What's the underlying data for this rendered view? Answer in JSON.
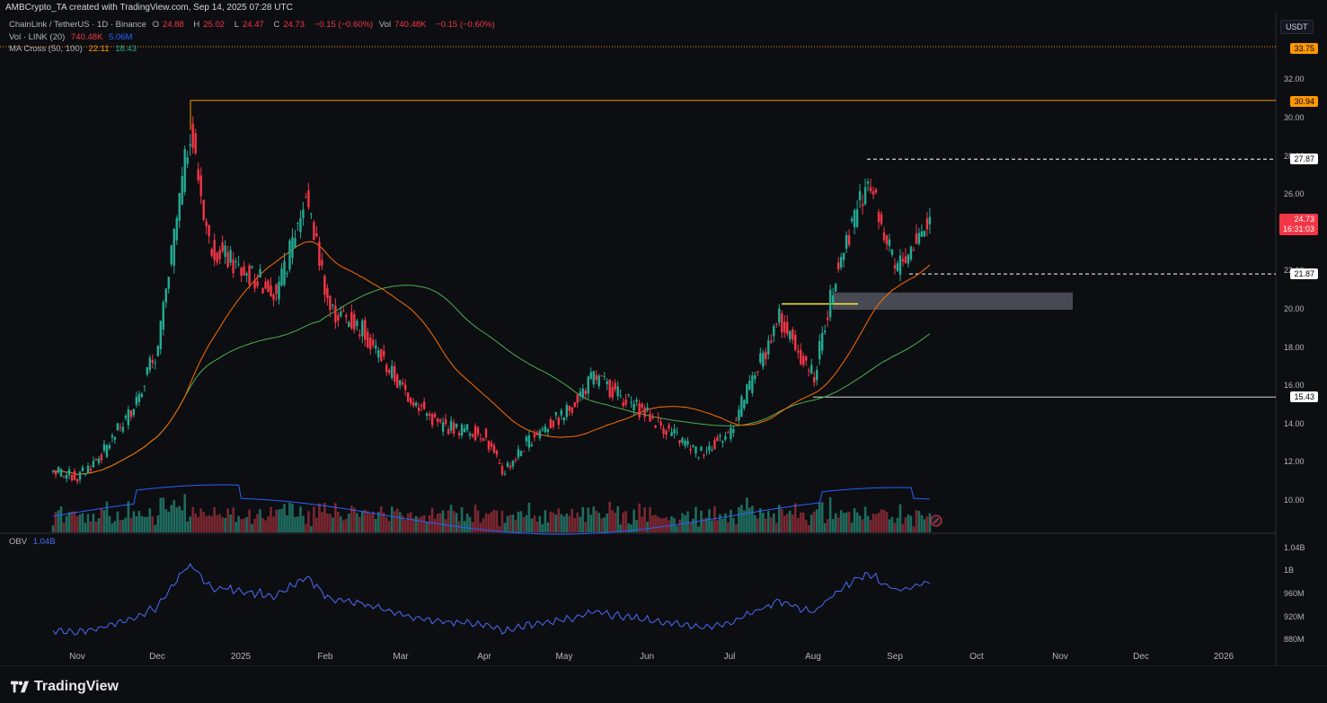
{
  "header": {
    "title": "AMBCrypto_TA created with TradingView.com, Sep 14, 2025 07:28 UTC"
  },
  "legend": {
    "symbol": "ChainLink / TetherUS · 1D · Binance",
    "o_label": "O",
    "o_value": "24.88",
    "h_label": "H",
    "h_value": "25.02",
    "l_label": "L",
    "l_value": "24.47",
    "c_label": "C",
    "c_value": "24.73",
    "change": "−0.15 (−0.60%)",
    "vol_label": "Vol",
    "vol_value": "740.48K",
    "vol_change": "−0.15 (−0.60%)",
    "vol_line": "Vol · LINK (20)",
    "vol_a": "740.48K",
    "vol_b": "5.06M",
    "ma_line": "MA Cross (50, 100)",
    "ma_a": "22.11",
    "ma_b": "18.43",
    "obv_label": "OBV",
    "obv_value": "1.04B"
  },
  "currency_button": "USDT",
  "price_axis": [
    "32.00",
    "30.00",
    "28.00",
    "26.00",
    "24.00",
    "22.00",
    "20.00",
    "18.00",
    "16.00",
    "14.00",
    "12.00",
    "10.00"
  ],
  "obv_axis": [
    "1.04B",
    "1B",
    "960M",
    "920M",
    "880M"
  ],
  "price_tags": {
    "top": "33.75",
    "resistance_high": "30.94",
    "resistance_mid": "27.87",
    "current_price": "24.73",
    "countdown": "16:31:03",
    "support": "21.87",
    "support_low": "15.43"
  },
  "time_axis": [
    "Nov",
    "Dec",
    "2025",
    "Feb",
    "Mar",
    "Apr",
    "May",
    "Jun",
    "Jul",
    "Aug",
    "Sep",
    "Oct",
    "Nov",
    "Dec",
    "2026"
  ],
  "footer": {
    "brand": "TradingView"
  },
  "colors": {
    "background": "#0d0e12",
    "up": "#22ab94",
    "down": "#f23645",
    "ma50": "#ff6d00",
    "ma100": "#4caf50",
    "volume_ma": "#2962ff",
    "obv": "#4a6cf7",
    "resistance": "#ff9800"
  },
  "chart_data": {
    "type": "candlestick",
    "symbol": "ChainLink / TetherUS",
    "interval": "1D",
    "ylim": [
      9,
      34
    ],
    "levels": [
      33.75,
      30.94,
      27.87,
      21.87,
      15.43
    ],
    "zone": [
      20.0,
      20.9
    ],
    "current": 24.73,
    "monthly_path": [
      {
        "x": "Oct 23",
        "y": 11.6
      },
      {
        "x": "Nov 1",
        "y": 11.2
      },
      {
        "x": "Nov 10",
        "y": 12.4
      },
      {
        "x": "Nov 20",
        "y": 14.5
      },
      {
        "x": "Dec 1",
        "y": 18.0
      },
      {
        "x": "Dec 13",
        "y": 29.5
      },
      {
        "x": "Dec 20",
        "y": 23.5
      },
      {
        "x": "2025 Jan 1",
        "y": 22.0
      },
      {
        "x": "Jan 15",
        "y": 21.0
      },
      {
        "x": "Jan 25",
        "y": 26.0
      },
      {
        "x": "Feb 3",
        "y": 20.0
      },
      {
        "x": "Feb 15",
        "y": 19.0
      },
      {
        "x": "Mar 1",
        "y": 16.0
      },
      {
        "x": "Mar 15",
        "y": 14.0
      },
      {
        "x": "Apr 1",
        "y": 13.5
      },
      {
        "x": "Apr 8",
        "y": 11.5
      },
      {
        "x": "Apr 20",
        "y": 13.5
      },
      {
        "x": "May 1",
        "y": 14.5
      },
      {
        "x": "May 12",
        "y": 16.5
      },
      {
        "x": "Jun 1",
        "y": 14.5
      },
      {
        "x": "Jun 20",
        "y": 12.5
      },
      {
        "x": "Jul 1",
        "y": 13.5
      },
      {
        "x": "Jul 20",
        "y": 19.5
      },
      {
        "x": "Aug 2",
        "y": 16.5
      },
      {
        "x": "Aug 10",
        "y": 22.0
      },
      {
        "x": "Aug 22",
        "y": 27.0
      },
      {
        "x": "Sep 1",
        "y": 22.0
      },
      {
        "x": "Sep 14",
        "y": 24.73
      }
    ]
  }
}
